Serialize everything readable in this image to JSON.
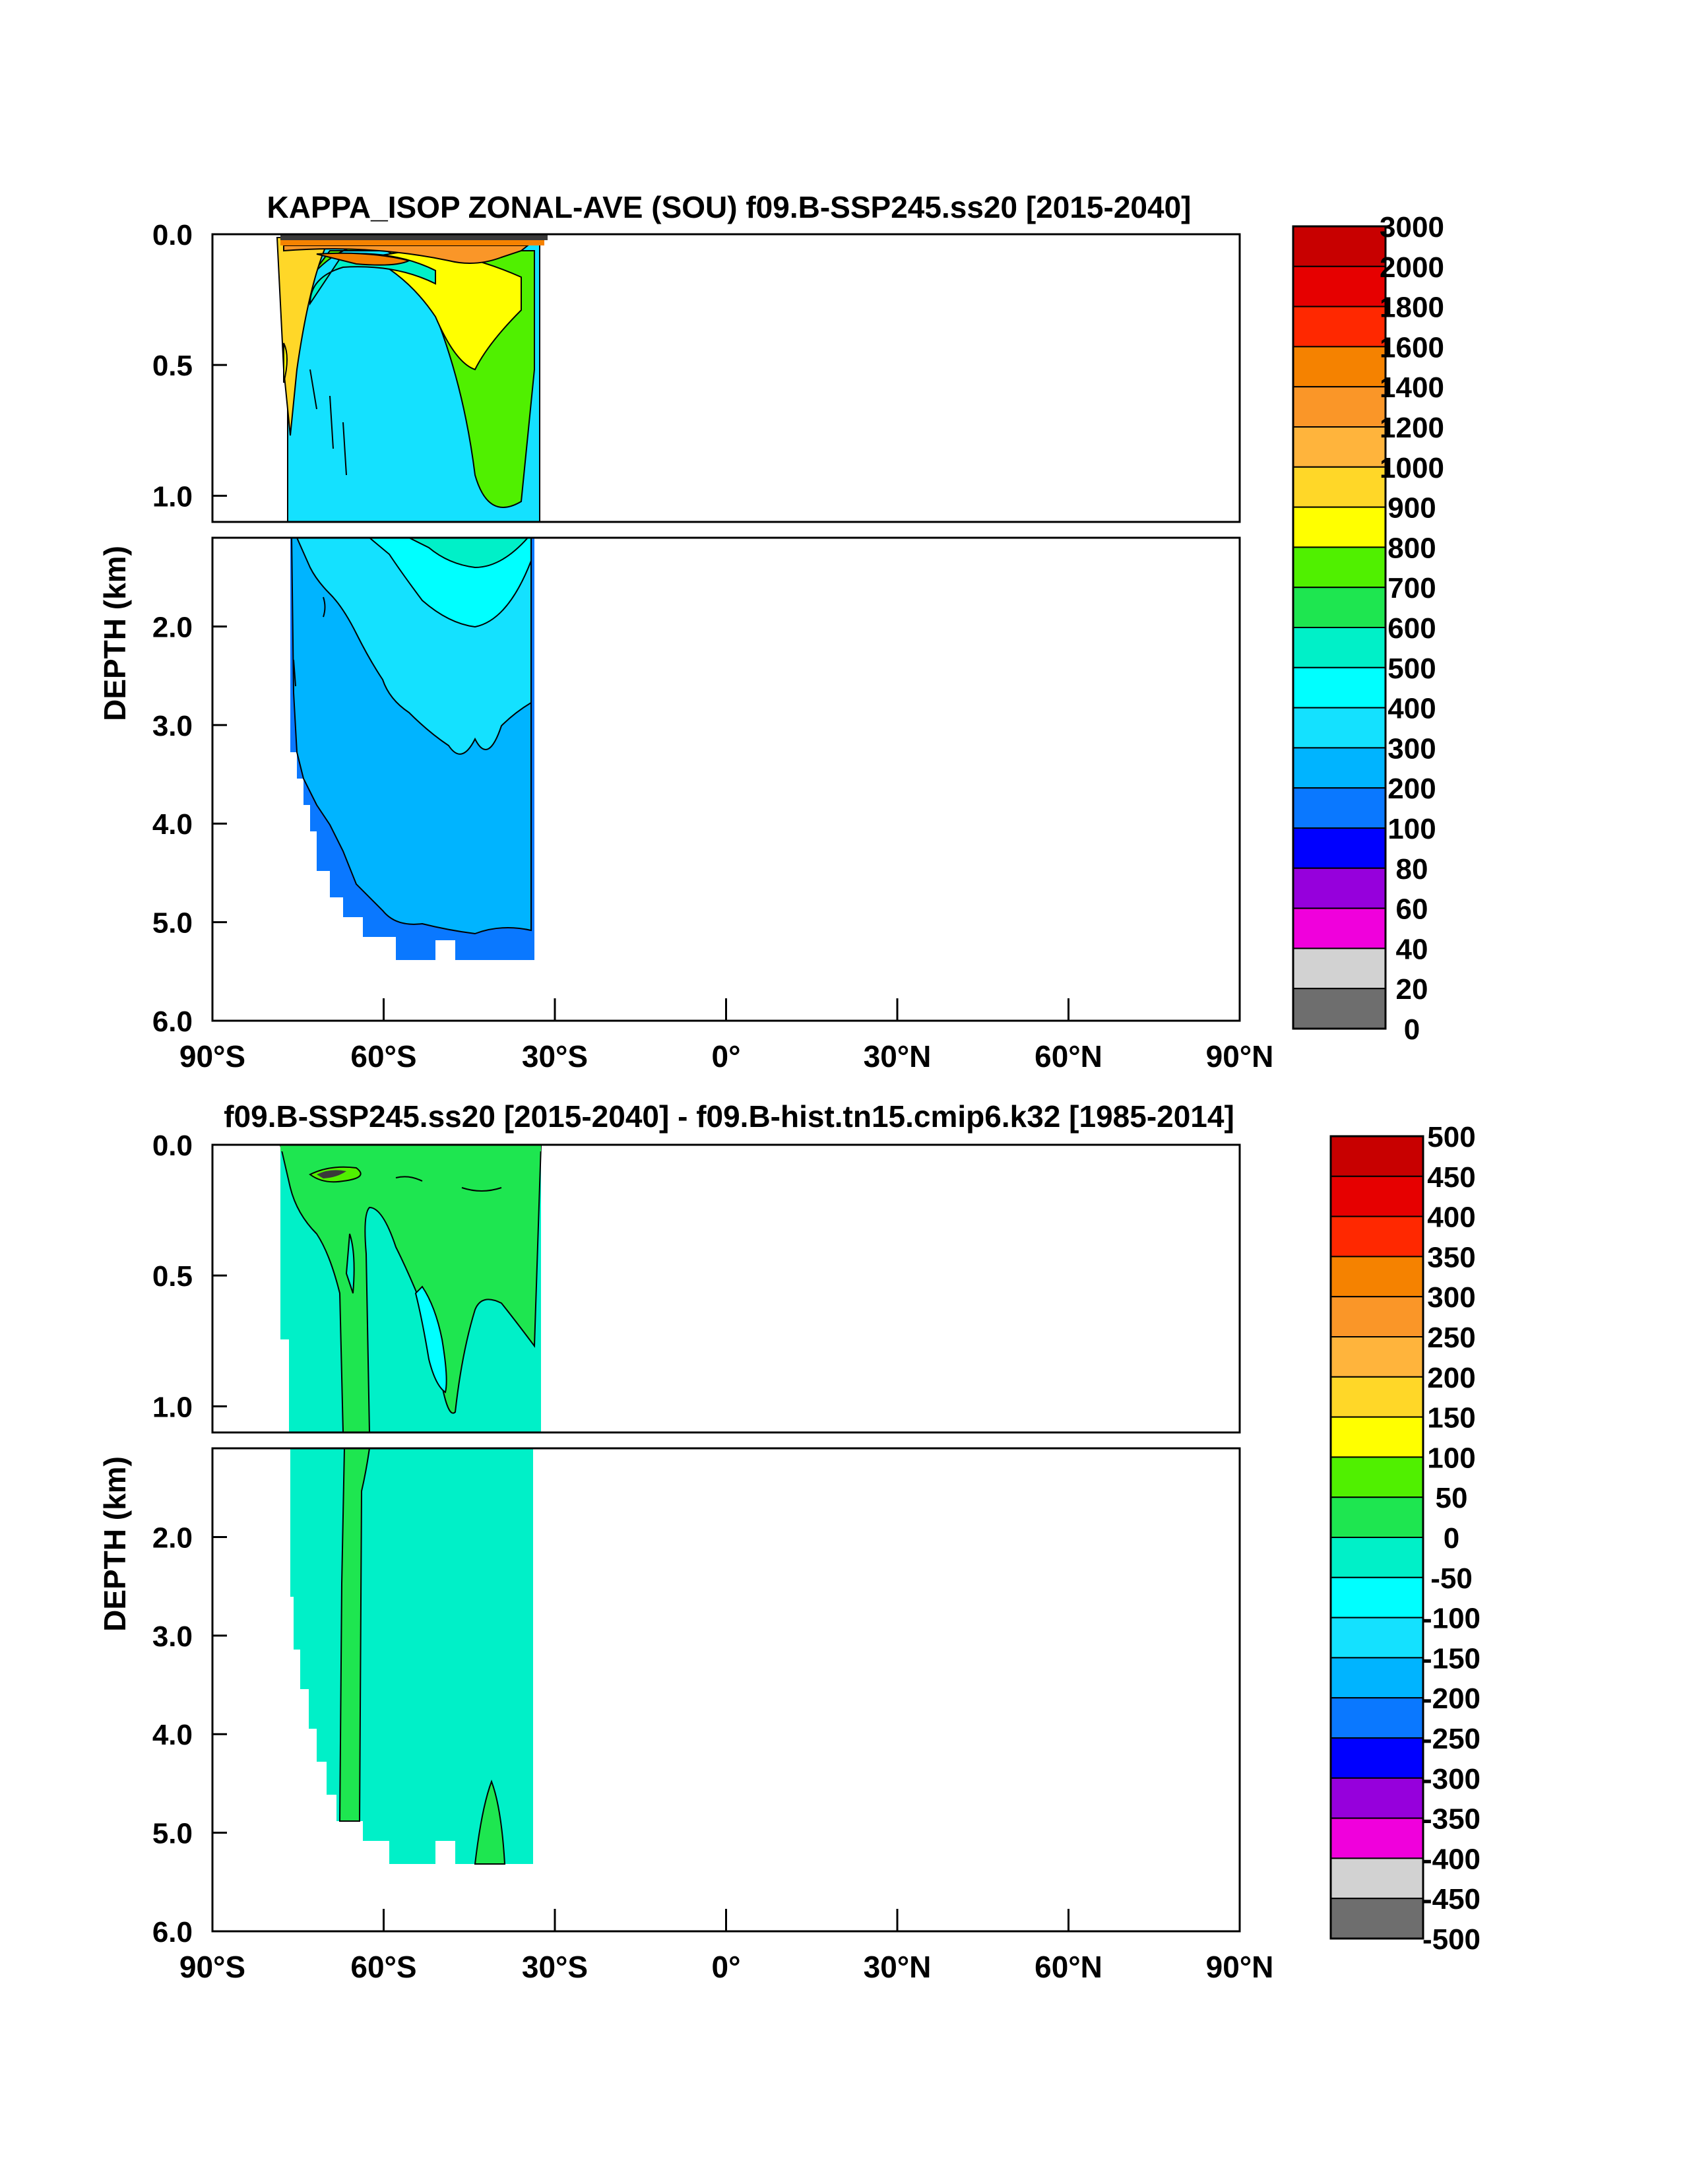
{
  "chart_data": [
    {
      "type": "heatmap",
      "title": "KAPPA_ISOP ZONAL-AVE (SOU) f09.B-SSP245.ss20 [2015-2040]",
      "ylabel": "DEPTH (km)",
      "xlabel": "",
      "x_ticks": [
        "90°S",
        "60°S",
        "30°S",
        "0°",
        "30°N",
        "60°N",
        "90°N"
      ],
      "y_ticks_upper": [
        "0.0",
        "0.5",
        "1.0"
      ],
      "y_ticks_lower": [
        "2.0",
        "3.0",
        "4.0",
        "5.0",
        "6.0"
      ],
      "xlim": [
        -90,
        90
      ],
      "ylim_km": [
        0,
        6
      ],
      "colorbar_levels": [
        "3000",
        "2000",
        "1800",
        "1600",
        "1400",
        "1200",
        "1000",
        "900",
        "800",
        "700",
        "600",
        "500",
        "400",
        "300",
        "200",
        "100",
        "80",
        "60",
        "40",
        "20",
        "0"
      ],
      "colorbar_colors": [
        "#c80000",
        "#e60000",
        "#ff2800",
        "#f58200",
        "#fa9628",
        "#ffb43c",
        "#ffd728",
        "#ffff00",
        "#50f000",
        "#1ee650",
        "#00f0c8",
        "#00ffff",
        "#14e1ff",
        "#00b4ff",
        "#0a78ff",
        "#0000ff",
        "#9600dc",
        "#f000dc",
        "#d2d2d2",
        "#6e6e6e"
      ]
    },
    {
      "type": "heatmap",
      "title": "f09.B-SSP245.ss20 [2015-2040] - f09.B-hist.tn15.cmip6.k32 [1985-2014]",
      "ylabel": "DEPTH (km)",
      "xlabel": "",
      "x_ticks": [
        "90°S",
        "60°S",
        "30°S",
        "0°",
        "30°N",
        "60°N",
        "90°N"
      ],
      "y_ticks_upper": [
        "0.0",
        "0.5",
        "1.0"
      ],
      "y_ticks_lower": [
        "2.0",
        "3.0",
        "4.0",
        "5.0",
        "6.0"
      ],
      "xlim": [
        -90,
        90
      ],
      "ylim_km": [
        0,
        6
      ],
      "colorbar_levels": [
        "500",
        "450",
        "400",
        "350",
        "300",
        "250",
        "200",
        "150",
        "100",
        "50",
        "0",
        "-50",
        "-100",
        "-150",
        "-200",
        "-250",
        "-300",
        "-350",
        "-400",
        "-450",
        "-500"
      ],
      "colorbar_colors": [
        "#c80000",
        "#e60000",
        "#ff2800",
        "#f58200",
        "#fa9628",
        "#ffb43c",
        "#ffd728",
        "#ffff00",
        "#50f000",
        "#1ee650",
        "#00f0c8",
        "#00ffff",
        "#14e1ff",
        "#00b4ff",
        "#0a78ff",
        "#0000ff",
        "#9600dc",
        "#f000dc",
        "#d2d2d2",
        "#6e6e6e"
      ]
    }
  ]
}
